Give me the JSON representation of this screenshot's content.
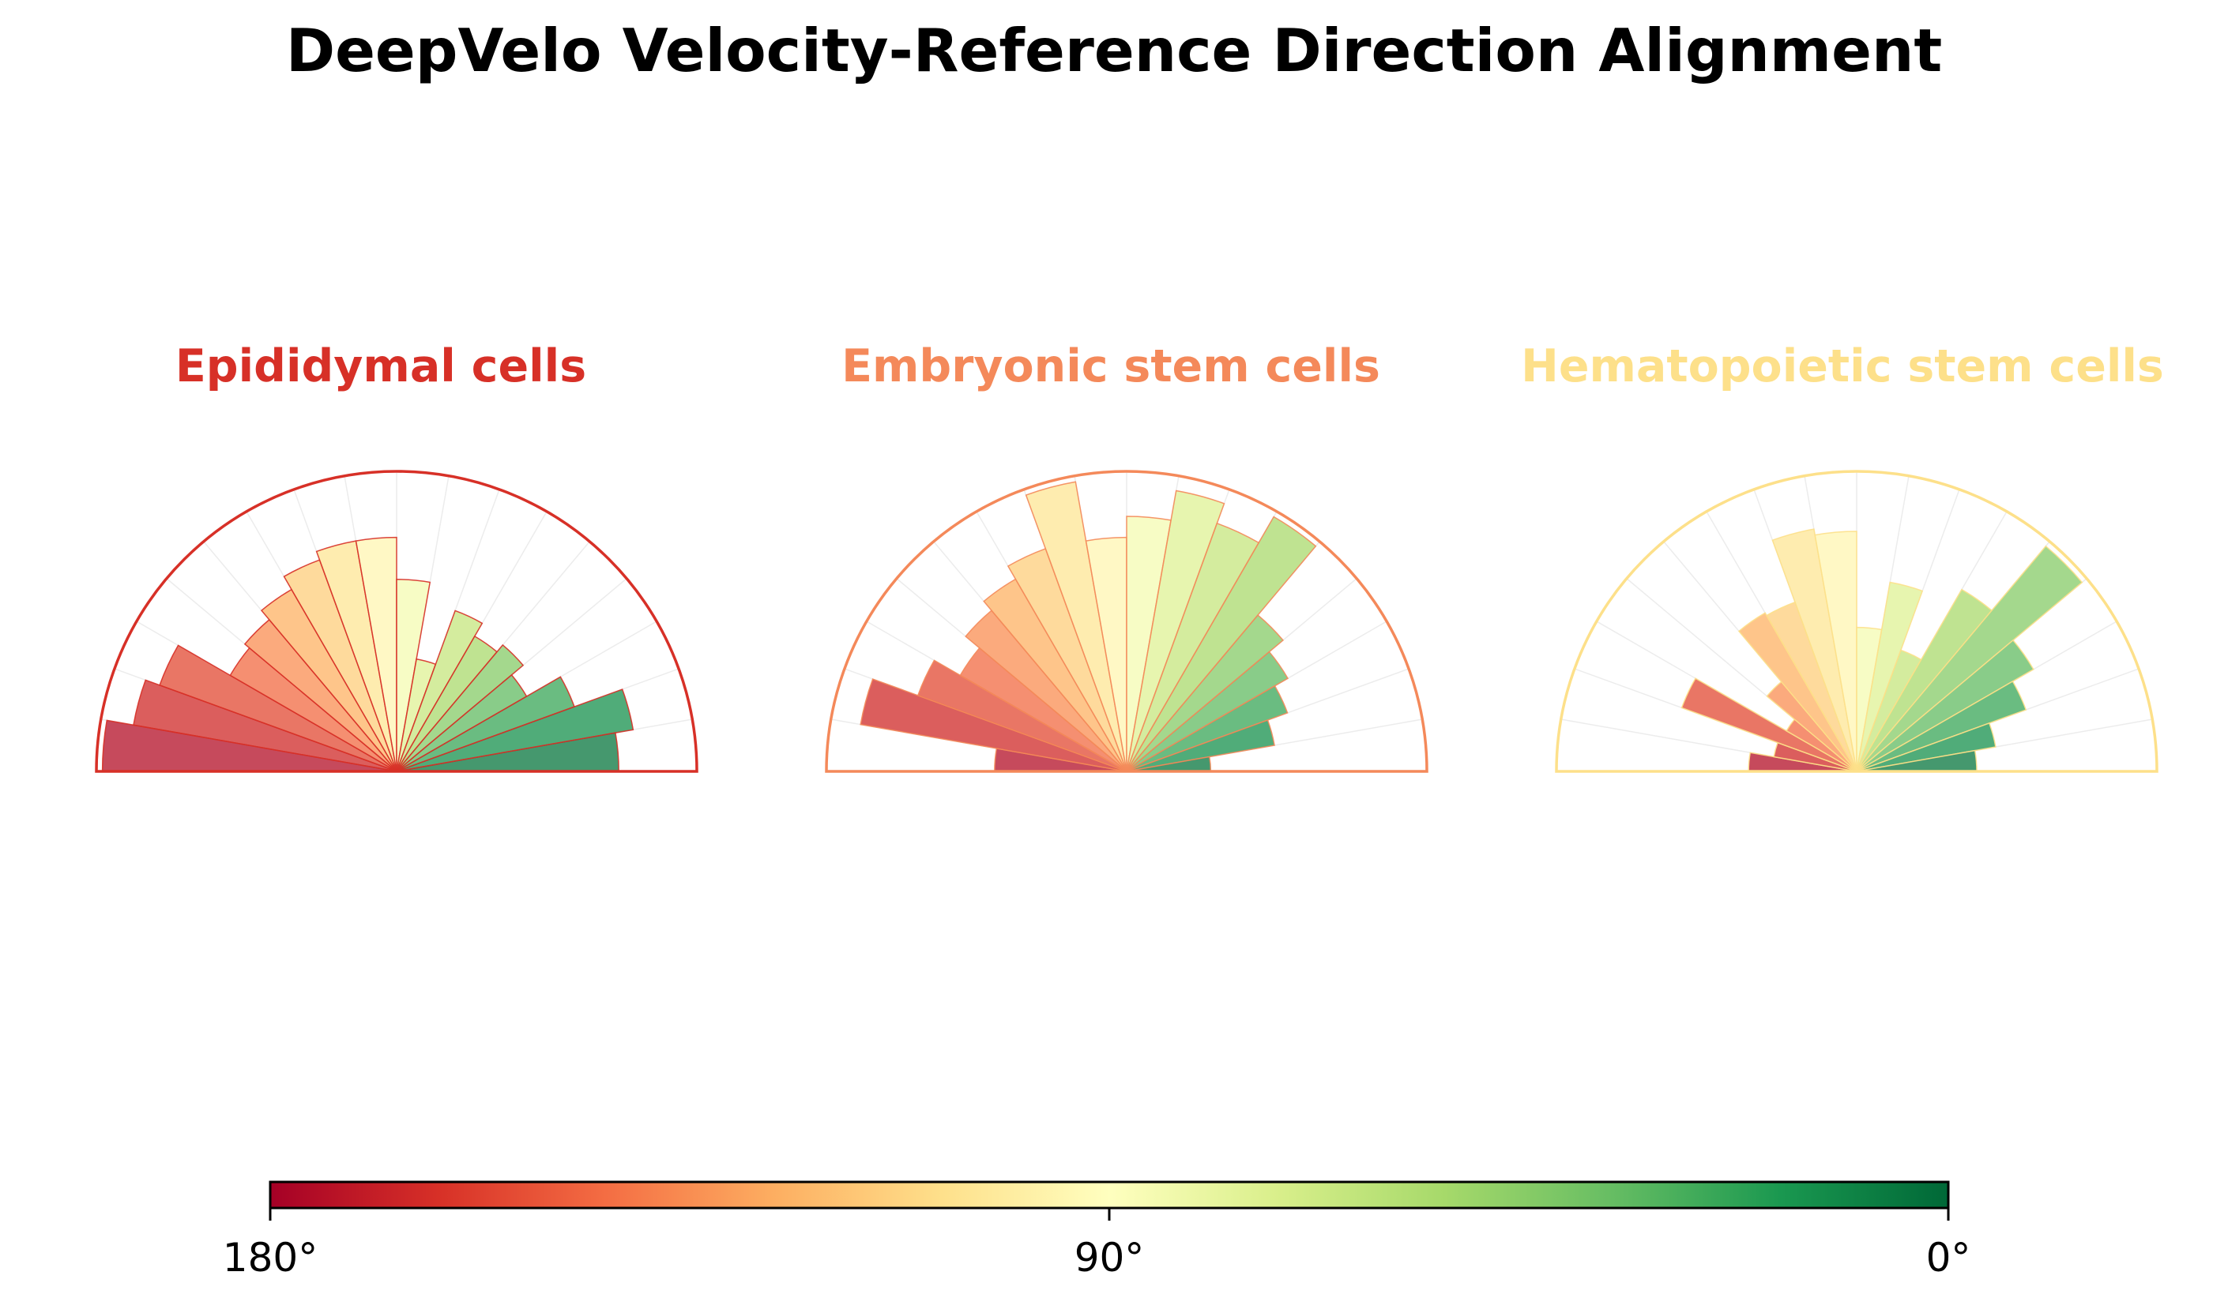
{
  "figure": {
    "title": "DeepVelo Velocity-Reference Direction Alignment"
  },
  "colorbar": {
    "tick_labels": [
      "180°",
      "90°",
      "0°"
    ],
    "tick_values_deg": [
      180,
      90,
      0
    ],
    "colormap": "RdYlGn",
    "colors": [
      "#a50026",
      "#d73027",
      "#f46d43",
      "#fdae61",
      "#fee08b",
      "#ffffbf",
      "#d9ef8b",
      "#a6d96a",
      "#66bd63",
      "#1a9850",
      "#006837"
    ]
  },
  "chart_data": [
    {
      "type": "bar",
      "subtype": "polar-half-rose",
      "title": "Epididymal cells",
      "title_color": "#d73027",
      "bin_width_deg": 10,
      "bin_centers_deg": [
        175,
        165,
        155,
        145,
        135,
        125,
        115,
        105,
        95,
        85,
        75,
        65,
        55,
        45,
        35,
        25,
        15,
        5
      ],
      "values": [
        0.98,
        0.89,
        0.84,
        0.64,
        0.66,
        0.7,
        0.75,
        0.78,
        0.78,
        0.64,
        0.38,
        0.57,
        0.52,
        0.55,
        0.5,
        0.63,
        0.8,
        0.74
      ],
      "rlim": [
        0,
        1
      ]
    },
    {
      "type": "bar",
      "subtype": "polar-half-rose",
      "title": "Embryonic stem cells",
      "title_color": "#f4895a",
      "bin_width_deg": 10,
      "bin_centers_deg": [
        175,
        165,
        155,
        145,
        135,
        125,
        115,
        105,
        95,
        85,
        75,
        65,
        55,
        45,
        35,
        25,
        15,
        5
      ],
      "values": [
        0.44,
        0.9,
        0.74,
        0.64,
        0.7,
        0.74,
        0.79,
        0.98,
        0.78,
        0.85,
        0.95,
        0.88,
        0.98,
        0.68,
        0.62,
        0.57,
        0.5,
        0.28
      ],
      "rlim": [
        0,
        1
      ]
    },
    {
      "type": "bar",
      "subtype": "polar-half-rose",
      "title": "Hematopoietic stem cells",
      "title_color": "#fde08a",
      "bin_width_deg": 10,
      "bin_centers_deg": [
        175,
        165,
        155,
        145,
        135,
        125,
        115,
        105,
        95,
        85,
        75,
        65,
        55,
        45,
        35,
        25,
        15,
        5
      ],
      "values": [
        0.36,
        0.28,
        0.62,
        0.27,
        0.39,
        0.61,
        0.6,
        0.82,
        0.8,
        0.48,
        0.64,
        0.43,
        0.7,
        0.98,
        0.68,
        0.6,
        0.47,
        0.4
      ],
      "rlim": [
        0,
        1
      ]
    }
  ]
}
